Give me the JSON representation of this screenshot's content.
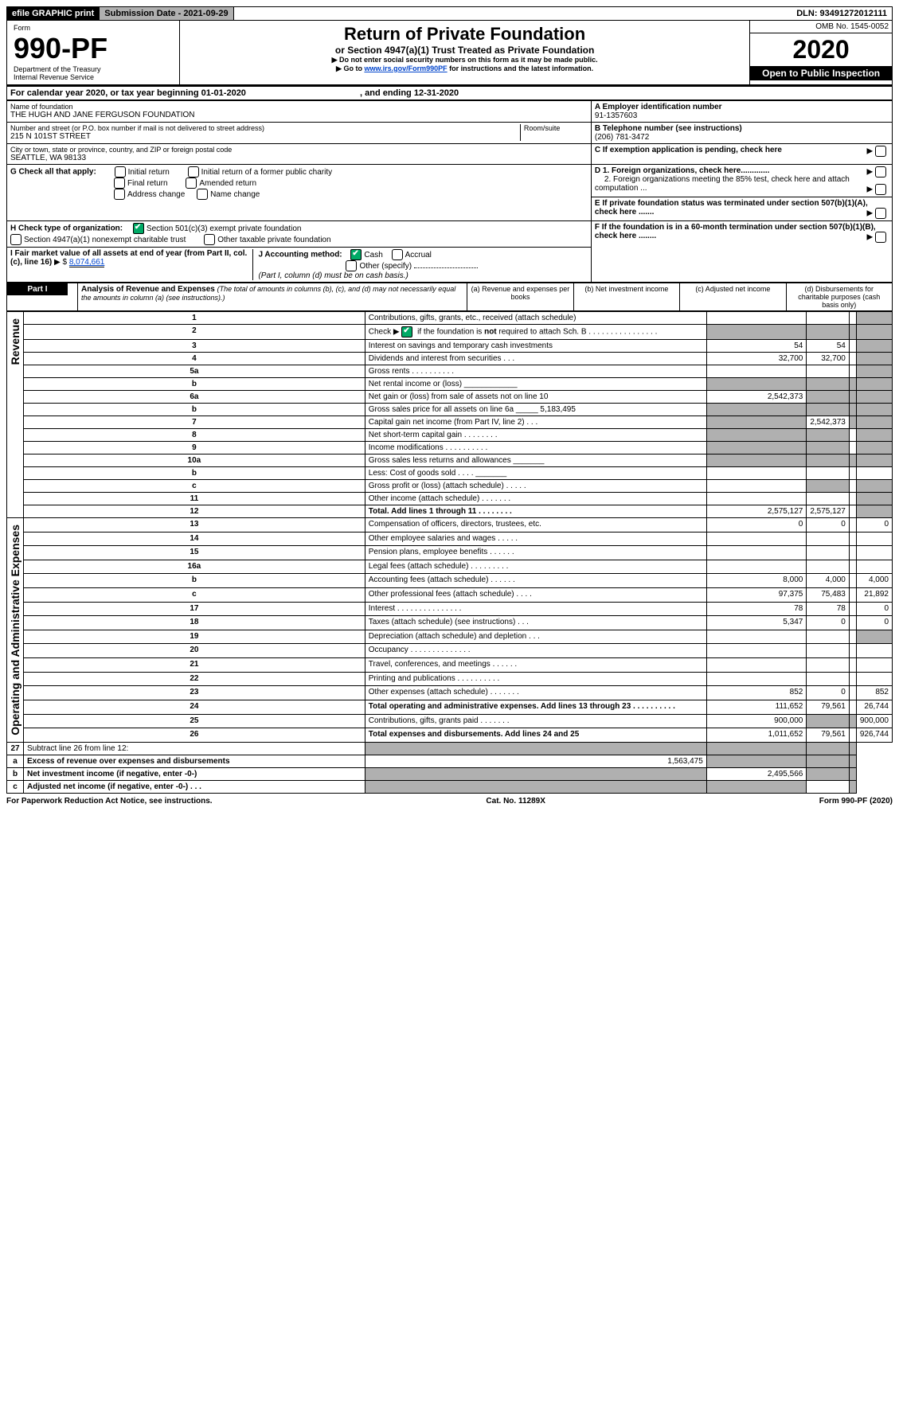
{
  "top_bar": {
    "efile": "efile GRAPHIC print",
    "sub_label": "Submission Date - 2021-09-29",
    "dln": "DLN: 93491272012111"
  },
  "header": {
    "form_word": "Form",
    "form_no": "990-PF",
    "dept": "Department of the Treasury",
    "irs": "Internal Revenue Service",
    "title": "Return of Private Foundation",
    "subtitle": "or Section 4947(a)(1) Trust Treated as Private Foundation",
    "note1": "Do not enter social security numbers on this form as it may be made public.",
    "note2_pre": "Go to ",
    "note2_link": "www.irs.gov/Form990PF",
    "note2_post": " for instructions and the latest information.",
    "omb": "OMB No. 1545-0052",
    "year": "2020",
    "open": "Open to Public Inspection"
  },
  "cal": {
    "text1": "For calendar year 2020, or tax year beginning ",
    "begin": "01-01-2020",
    "text2": ", and ending ",
    "end": "12-31-2020"
  },
  "entity": {
    "name_label": "Name of foundation",
    "name": "THE HUGH AND JANE FERGUSON FOUNDATION",
    "addr_label": "Number and street (or P.O. box number if mail is not delivered to street address)",
    "addr": "215 N 101ST STREET",
    "room_label": "Room/suite",
    "city_label": "City or town, state or province, country, and ZIP or foreign postal code",
    "city": "SEATTLE, WA  98133",
    "ein_label": "A Employer identification number",
    "ein": "91-1357603",
    "tel_label": "B Telephone number (see instructions)",
    "tel": "(206) 781-3472",
    "c_label": "C If exemption application is pending, check here",
    "d1": "D 1. Foreign organizations, check here.............",
    "d2": "2. Foreign organizations meeting the 85% test, check here and attach computation ...",
    "e_label": "E If private foundation status was terminated under section 507(b)(1)(A), check here .......",
    "f_label": "F If the foundation is in a 60-month termination under section 507(b)(1)(B), check here ........"
  },
  "g": {
    "label": "G Check all that apply:",
    "o1": "Initial return",
    "o2": "Initial return of a former public charity",
    "o3": "Final return",
    "o4": "Amended return",
    "o5": "Address change",
    "o6": "Name change"
  },
  "h": {
    "label": "H Check type of organization:",
    "o1": "Section 501(c)(3) exempt private foundation",
    "o2": "Section 4947(a)(1) nonexempt charitable trust",
    "o3": "Other taxable private foundation"
  },
  "i": {
    "label": "I Fair market value of all assets at end of year (from Part II, col. (c), line 16)",
    "arrow": "▶ $",
    "value": "8,074,661"
  },
  "j": {
    "label": "J Accounting method:",
    "o1": "Cash",
    "o2": "Accrual",
    "o3": "Other (specify)",
    "note": "(Part I, column (d) must be on cash basis.)"
  },
  "part1": {
    "label": "Part I",
    "title": "Analysis of Revenue and Expenses",
    "title_note": " (The total of amounts in columns (b), (c), and (d) may not necessarily equal the amounts in column (a) (see instructions).)",
    "col_a": "(a)   Revenue and expenses per books",
    "col_b": "(b)  Net investment income",
    "col_c": "(c)  Adjusted net income",
    "col_d": "(d)  Disbursements for charitable purposes (cash basis only)"
  },
  "vert": {
    "revenue": "Revenue",
    "expenses": "Operating and Administrative Expenses"
  },
  "lines": [
    {
      "n": "1",
      "d": "Contributions, gifts, grants, etc., received (attach schedule)"
    },
    {
      "n": "2",
      "d": "Check ▶ ☑ if the foundation is not required to attach Sch. B"
    },
    {
      "n": "3",
      "d": "Interest on savings and temporary cash investments",
      "a": "54",
      "b": "54"
    },
    {
      "n": "4",
      "d": "Dividends and interest from securities   .   .   .",
      "a": "32,700",
      "b": "32,700"
    },
    {
      "n": "5a",
      "d": "Gross rents   .   .   .   .   .   .   .   .   .   ."
    },
    {
      "n": "b",
      "d": "Net rental income or (loss)  ____________"
    },
    {
      "n": "6a",
      "d": "Net gain or (loss) from sale of assets not on line 10",
      "a": "2,542,373"
    },
    {
      "n": "b",
      "d": "Gross sales price for all assets on line 6a _____ 5,183,495"
    },
    {
      "n": "7",
      "d": "Capital gain net income (from Part IV, line 2)   .   .   .",
      "b": "2,542,373"
    },
    {
      "n": "8",
      "d": "Net short-term capital gain   .   .   .   .   .   .   .   ."
    },
    {
      "n": "9",
      "d": "Income modifications   .   .   .   .   .   .   .   .   .   ."
    },
    {
      "n": "10a",
      "d": "Gross sales less returns and allowances  _______"
    },
    {
      "n": "b",
      "d": "Less: Cost of goods sold   .   .   .   .  _______"
    },
    {
      "n": "c",
      "d": "Gross profit or (loss) (attach schedule)   .   .   .   .   ."
    },
    {
      "n": "11",
      "d": "Other income (attach schedule)   .   .   .   .   .   .   ."
    },
    {
      "n": "12",
      "d": "Total. Add lines 1 through 11   .   .   .   .   .   .   .   .",
      "a": "2,575,127",
      "b": "2,575,127",
      "bold": true
    }
  ],
  "exp_lines": [
    {
      "n": "13",
      "d": "Compensation of officers, directors, trustees, etc.",
      "a": "0",
      "b": "0",
      "dd": "0"
    },
    {
      "n": "14",
      "d": "Other employee salaries and wages   .   .   .   .   ."
    },
    {
      "n": "15",
      "d": "Pension plans, employee benefits   .   .   .   .   .   ."
    },
    {
      "n": "16a",
      "d": "Legal fees (attach schedule)   .   .   .   .   .   .   .   .   ."
    },
    {
      "n": "b",
      "d": "Accounting fees (attach schedule)   .   .   .   .   .   .",
      "a": "8,000",
      "b": "4,000",
      "dd": "4,000"
    },
    {
      "n": "c",
      "d": "Other professional fees (attach schedule)   .   .   .   .",
      "a": "97,375",
      "b": "75,483",
      "dd": "21,892"
    },
    {
      "n": "17",
      "d": "Interest   .   .   .   .   .   .   .   .   .   .   .   .   .   .   .",
      "a": "78",
      "b": "78",
      "dd": "0"
    },
    {
      "n": "18",
      "d": "Taxes (attach schedule) (see instructions)   .   .   .",
      "a": "5,347",
      "b": "0",
      "dd": "0"
    },
    {
      "n": "19",
      "d": "Depreciation (attach schedule) and depletion   .   .   ."
    },
    {
      "n": "20",
      "d": "Occupancy   .   .   .   .   .   .   .   .   .   .   .   .   .   ."
    },
    {
      "n": "21",
      "d": "Travel, conferences, and meetings   .   .   .   .   .   ."
    },
    {
      "n": "22",
      "d": "Printing and publications   .   .   .   .   .   .   .   .   .   ."
    },
    {
      "n": "23",
      "d": "Other expenses (attach schedule)   .   .   .   .   .   .   .",
      "a": "852",
      "b": "0",
      "dd": "852"
    },
    {
      "n": "24",
      "d": "Total operating and administrative expenses. Add lines 13 through 23   .   .   .   .   .   .   .   .   .   .",
      "a": "111,652",
      "b": "79,561",
      "dd": "26,744",
      "bold": true
    },
    {
      "n": "25",
      "d": "Contributions, gifts, grants paid   .   .   .   .   .   .   .",
      "a": "900,000",
      "dd": "900,000"
    },
    {
      "n": "26",
      "d": "Total expenses and disbursements. Add lines 24 and 25",
      "a": "1,011,652",
      "b": "79,561",
      "dd": "926,744",
      "bold": true
    }
  ],
  "last_lines": [
    {
      "n": "27",
      "d": "Subtract line 26 from line 12:"
    },
    {
      "n": "a",
      "d": "Excess of revenue over expenses and disbursements",
      "a": "1,563,475",
      "bold": true
    },
    {
      "n": "b",
      "d": "Net investment income (if negative, enter -0-)",
      "b": "2,495,566",
      "bold": true
    },
    {
      "n": "c",
      "d": "Adjusted net income (if negative, enter -0-)   .   .   .",
      "bold": true
    }
  ],
  "footer": {
    "left": "For Paperwork Reduction Act Notice, see instructions.",
    "mid": "Cat. No. 11289X",
    "right": "Form 990-PF (2020)"
  }
}
